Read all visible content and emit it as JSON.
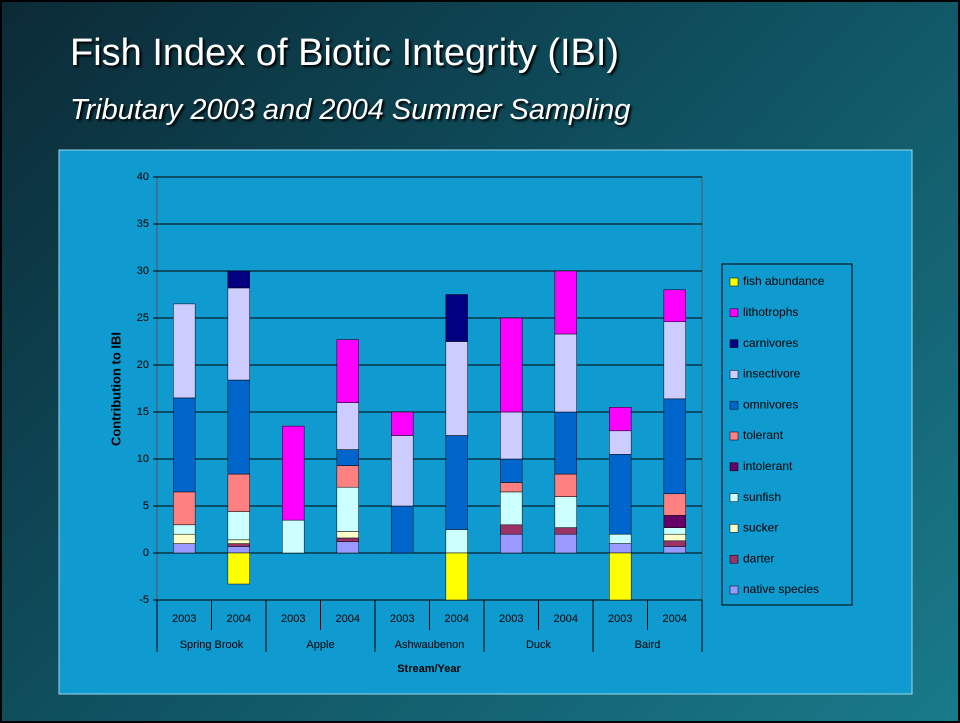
{
  "chart_data": {
    "type": "bar",
    "stacked": true,
    "title": "Fish Index of Biotic Integrity (IBI)",
    "subtitle": "Tributary 2003 and 2004 Summer Sampling",
    "y_label": "Contribution to IBI",
    "x_label": "Stream/Year",
    "categories": [
      "2003",
      "2004",
      "2003",
      "2004",
      "2003",
      "2004",
      "2003",
      "2004",
      "2003",
      "2004"
    ],
    "groups": [
      "Spring Brook",
      "Apple",
      "Ashwaubenon",
      "Duck",
      "Baird"
    ],
    "ylim": [
      -5,
      40
    ],
    "yticks": [
      -5,
      0,
      5,
      10,
      15,
      20,
      25,
      30,
      35,
      40
    ],
    "grid": true,
    "legend": "right",
    "series": [
      {
        "name": "native species",
        "color": "#9999ff",
        "values": [
          1,
          0.7,
          0,
          1.2,
          0,
          0,
          2,
          2,
          1,
          0.7
        ]
      },
      {
        "name": "darter",
        "color": "#993366",
        "values": [
          0,
          0.3,
          0,
          0.4,
          0,
          0,
          1,
          0.7,
          0,
          0.6
        ]
      },
      {
        "name": "sucker",
        "color": "#ffffcc",
        "values": [
          1,
          0.4,
          0,
          0.7,
          0,
          0,
          0,
          0,
          0,
          0.7
        ]
      },
      {
        "name": "sunfish",
        "color": "#ccffff",
        "values": [
          1,
          3,
          3.5,
          4.7,
          0,
          2.5,
          3.5,
          3.3,
          1,
          0.7
        ]
      },
      {
        "name": "intolerant",
        "color": "#660066",
        "values": [
          0,
          0,
          0,
          0,
          0,
          0,
          0,
          0,
          0,
          1.3
        ]
      },
      {
        "name": "tolerant",
        "color": "#ff8080",
        "values": [
          3.5,
          4,
          0,
          2.3,
          0,
          0,
          1,
          2.4,
          0,
          2.3
        ]
      },
      {
        "name": "omnivores",
        "color": "#0066cc",
        "values": [
          10,
          10,
          0,
          1.7,
          5,
          10,
          2.5,
          6.6,
          8.5,
          10.1
        ]
      },
      {
        "name": "insectivore",
        "color": "#ccccff",
        "values": [
          10,
          9.8,
          0,
          5,
          7.5,
          10,
          5,
          8.3,
          2.5,
          8.2
        ]
      },
      {
        "name": "carnivores",
        "color": "#000080",
        "values": [
          0,
          1.8,
          0,
          0,
          0,
          5,
          0,
          0,
          0,
          0
        ]
      },
      {
        "name": "lithotrophs",
        "color": "#ff00ff",
        "values": [
          0,
          0,
          10,
          6.7,
          2.5,
          0,
          10,
          6.7,
          2.5,
          3.4
        ]
      },
      {
        "name": "fish abundance",
        "color": "#ffff00",
        "values": [
          0,
          -3.3,
          0,
          0,
          0,
          -5,
          0,
          0,
          -5,
          0
        ]
      }
    ]
  }
}
